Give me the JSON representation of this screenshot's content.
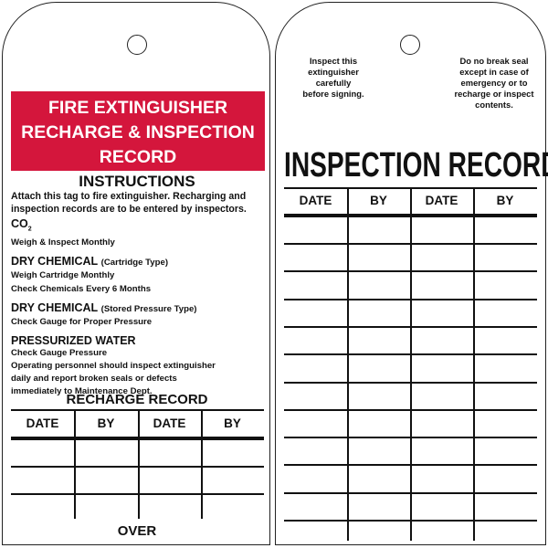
{
  "left_tag": {
    "banner": [
      "FIRE EXTINGUISHER",
      "RECHARGE & INSPECTION",
      "RECORD"
    ],
    "instructions_title": "INSTRUCTIONS",
    "intro": [
      "Attach this tag to fire extinguisher. Recharging and",
      "inspection records are to be entered by inspectors."
    ],
    "co2_heading": "CO",
    "co2_sub": "2",
    "co2_text": "Weigh & Inspect Monthly",
    "dry_cart_heading": "DRY CHEMICAL",
    "dry_cart_type": "(Cartridge Type)",
    "dry_cart_lines": [
      "Weigh Cartridge Monthly",
      "Check Chemicals Every 6 Months"
    ],
    "dry_stored_heading": "DRY CHEMICAL",
    "dry_stored_type": "(Stored Pressure Type)",
    "dry_stored_lines": [
      "Check Gauge for Proper Pressure"
    ],
    "water_heading": "PRESSURIZED WATER",
    "water_lines": [
      "Check Gauge Pressure",
      "Operating personnel should inspect extinguisher",
      "daily and report broken seals or defects",
      "immediately to Maintenance Dept."
    ],
    "recharge_title": "RECHARGE RECORD",
    "columns": [
      "DATE",
      "BY",
      "DATE",
      "BY"
    ],
    "footer": "OVER"
  },
  "right_tag": {
    "note_left": [
      "Inspect this",
      "extinguisher",
      "carefully",
      "before signing."
    ],
    "note_right": [
      "Do no break seal",
      "except in case of",
      "emergency or to",
      "recharge or inspect",
      "contents."
    ],
    "title": "INSPECTION RECORD",
    "columns": [
      "DATE",
      "BY",
      "DATE",
      "BY"
    ]
  },
  "colors": {
    "banner": "#d4163c",
    "ink": "#111111"
  }
}
